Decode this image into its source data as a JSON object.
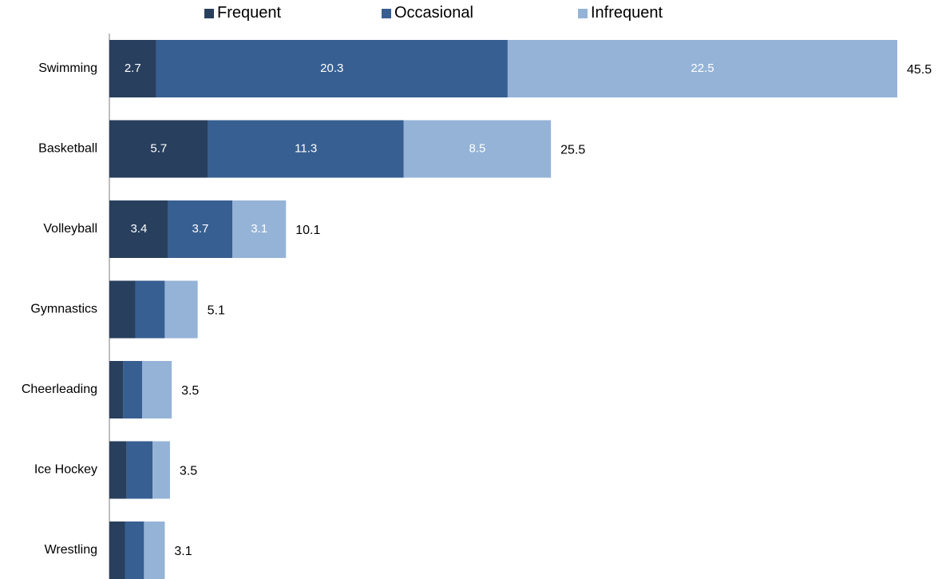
{
  "chart_data": {
    "type": "bar",
    "orientation": "horizontal",
    "stacked": true,
    "categories": [
      "Swimming",
      "Basketball",
      "Volleyball",
      "Gymnastics",
      "Cheerleading",
      "Ice Hockey",
      "Wrestling"
    ],
    "series": [
      {
        "name": "Frequent",
        "color": "#283f5e",
        "values": [
          2.7,
          5.7,
          3.4,
          1.5,
          0.8,
          1.0,
          0.9
        ]
      },
      {
        "name": "Occasional",
        "color": "#375f91",
        "values": [
          20.3,
          11.3,
          3.7,
          1.7,
          1.1,
          1.5,
          1.1
        ]
      },
      {
        "name": "Infrequent",
        "color": "#95b3d7",
        "values": [
          22.5,
          8.5,
          3.1,
          1.9,
          1.7,
          1.0,
          1.2
        ]
      }
    ],
    "segment_labels": [
      [
        "2.7",
        "20.3",
        "22.5"
      ],
      [
        "5.7",
        "11.3",
        "8.5"
      ],
      [
        "3.4",
        "3.7",
        "3.1"
      ],
      [
        "",
        "",
        ""
      ],
      [
        "",
        "",
        ""
      ],
      [
        "",
        "",
        ""
      ],
      [
        "",
        "",
        ""
      ]
    ],
    "totals": [
      "45.5",
      "25.5",
      "10.1",
      "5.1",
      "3.5",
      "3.5",
      "3.1"
    ],
    "legend_position": "top",
    "grid": false,
    "xlim": [
      0,
      45.5
    ]
  }
}
